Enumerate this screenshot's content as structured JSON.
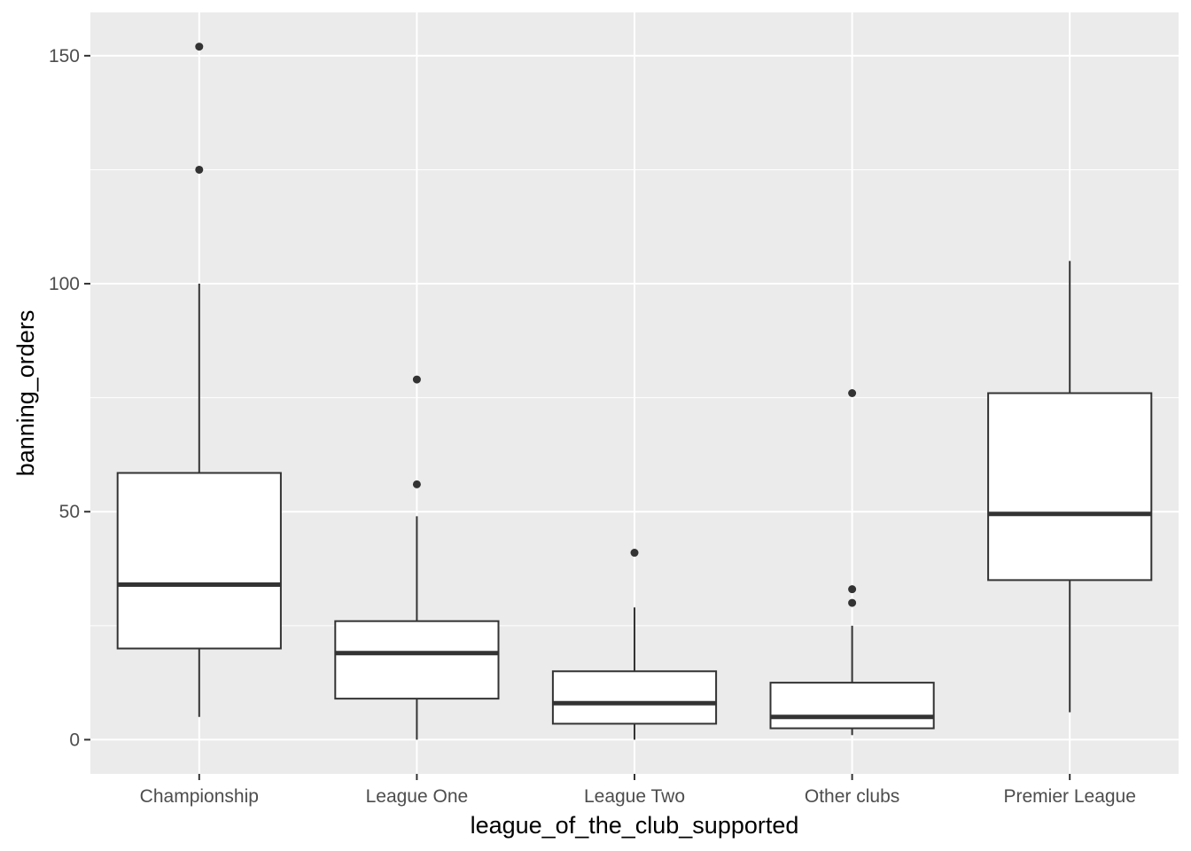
{
  "chart_data": {
    "type": "boxplot",
    "xlabel": "league_of_the_club_supported",
    "ylabel": "banning_orders",
    "ylim": [
      -7.5,
      159.5
    ],
    "yticks": [
      0,
      50,
      100,
      150
    ],
    "grid": true,
    "categories": [
      "Championship",
      "League One",
      "League Two",
      "Other clubs",
      "Premier League"
    ],
    "boxes": [
      {
        "category": "Championship",
        "min": 5,
        "q1": 20,
        "median": 34,
        "q3": 58.5,
        "max": 100,
        "outliers": [
          125,
          152
        ]
      },
      {
        "category": "League One",
        "min": 0,
        "q1": 9,
        "median": 19,
        "q3": 26,
        "max": 49,
        "outliers": [
          56,
          79
        ]
      },
      {
        "category": "League Two",
        "min": 0,
        "q1": 3.5,
        "median": 8,
        "q3": 15,
        "max": 29,
        "outliers": [
          41
        ]
      },
      {
        "category": "Other clubs",
        "min": 1,
        "q1": 2.5,
        "median": 5,
        "q3": 12.5,
        "max": 25,
        "outliers": [
          30,
          33,
          76
        ]
      },
      {
        "category": "Premier League",
        "min": 6,
        "q1": 35,
        "median": 49.5,
        "q3": 76,
        "max": 105,
        "outliers": []
      }
    ],
    "colors": {
      "panel": "#ebebeb",
      "grid": "#ffffff",
      "box_fill": "#ffffff",
      "box_line": "#333333",
      "tick_text": "#4d4d4d",
      "tick_mark": "#333333"
    }
  }
}
